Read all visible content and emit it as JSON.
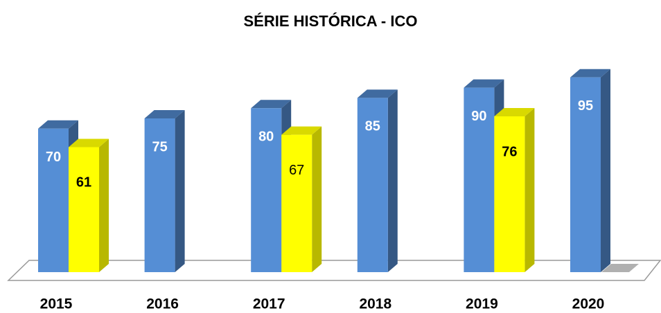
{
  "chart_data": {
    "type": "bar",
    "title": "SÉRIE HISTÓRICA - ICO",
    "categories": [
      "2015",
      "2016",
      "2017",
      "2018",
      "2019",
      "2020"
    ],
    "series": [
      {
        "color": "#558ed5",
        "values": [
          70,
          75,
          80,
          85,
          90,
          95
        ]
      },
      {
        "color": "#ffff00",
        "values": [
          61,
          null,
          67,
          null,
          76,
          null
        ]
      }
    ]
  }
}
